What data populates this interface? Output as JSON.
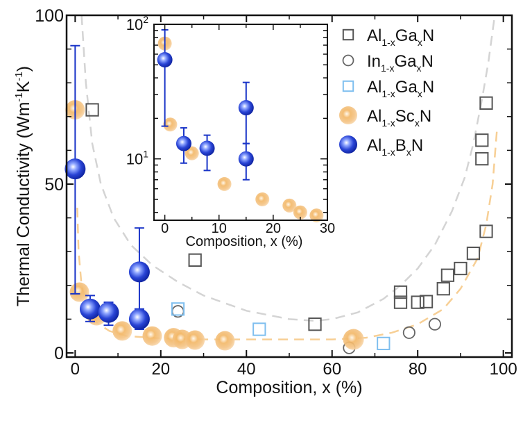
{
  "chart_data": [
    {
      "id": "main",
      "type": "scatter",
      "title": "",
      "xlabel": "Composition, x (%)",
      "ylabel": "Thermal Conductivity (Wm-1K-1)",
      "ylabel_parts": {
        "base": "Thermal Conductivity (Wm",
        "sup1": "-1",
        "mid": "K",
        "sup2": "-1",
        "end": ")"
      },
      "xlim": [
        -2,
        102
      ],
      "ylim": [
        0,
        100
      ],
      "xticks": [
        0,
        20,
        40,
        60,
        80,
        100
      ],
      "xtick_labels": [
        "0",
        "20",
        "40",
        "60",
        "80",
        "100"
      ],
      "yticks": [
        0,
        50,
        100
      ],
      "ytick_labels": [
        "0",
        "50",
        "100"
      ],
      "grid": false,
      "legend_position": "top-right",
      "series": [
        {
          "name": "Al1-xGaxN",
          "label_parts": {
            "a": "Al",
            "sa": "1-x",
            "b": "Ga",
            "sb": "x",
            "c": "N"
          },
          "marker": "square-open",
          "color": "#555555",
          "points": [
            {
              "x": 4,
              "y": 72
            },
            {
              "x": 28,
              "y": 27.5
            },
            {
              "x": 56,
              "y": 8.5
            },
            {
              "x": 76,
              "y": 18
            },
            {
              "x": 76,
              "y": 15
            },
            {
              "x": 80,
              "y": 15
            },
            {
              "x": 82,
              "y": 15.2
            },
            {
              "x": 86,
              "y": 19
            },
            {
              "x": 87,
              "y": 23
            },
            {
              "x": 90,
              "y": 25
            },
            {
              "x": 93,
              "y": 29.5
            },
            {
              "x": 96,
              "y": 36
            },
            {
              "x": 95,
              "y": 57.5
            },
            {
              "x": 95,
              "y": 63
            },
            {
              "x": 96,
              "y": 74
            }
          ]
        },
        {
          "name": "In1-xGaxN",
          "label_parts": {
            "a": "In",
            "sa": "1-x",
            "b": "Ga",
            "sb": "x",
            "c": "N"
          },
          "marker": "circle-open",
          "color": "#666666",
          "points": [
            {
              "x": 24,
              "y": 12.3
            },
            {
              "x": 64,
              "y": 1.5
            },
            {
              "x": 78,
              "y": 6
            },
            {
              "x": 84,
              "y": 8.5
            }
          ]
        },
        {
          "name": "Al1-xGaxN",
          "label_parts": {
            "a": "Al",
            "sa": "1-x",
            "b": "Ga",
            "sb": "x",
            "c": "N"
          },
          "marker": "square-open-light",
          "color": "#7fbfef",
          "points": [
            {
              "x": 24,
              "y": 13
            },
            {
              "x": 43,
              "y": 7
            },
            {
              "x": 72,
              "y": 2.8
            }
          ]
        },
        {
          "name": "Al1-xScxN",
          "label_parts": {
            "a": "Al",
            "sa": "1-x",
            "b": "Sc",
            "sb": "x",
            "c": "N"
          },
          "marker": "sphere",
          "color": "#f2b560",
          "points": [
            {
              "x": 0,
              "y": 72
            },
            {
              "x": 1,
              "y": 18
            },
            {
              "x": 5,
              "y": 11
            },
            {
              "x": 11,
              "y": 6.5
            },
            {
              "x": 18,
              "y": 5
            },
            {
              "x": 23,
              "y": 4.5
            },
            {
              "x": 25,
              "y": 4
            },
            {
              "x": 28,
              "y": 3.8
            },
            {
              "x": 35,
              "y": 3.6
            },
            {
              "x": 65,
              "y": 4
            }
          ]
        },
        {
          "name": "Al1-xBxN",
          "label_parts": {
            "a": "Al",
            "sa": "1-x",
            "b": "B",
            "sb": "x",
            "c": "N"
          },
          "marker": "sphere",
          "color": "#1a35c8",
          "points": [
            {
              "x": 0,
              "y": 54.5,
              "err_low": 17.5,
              "err_high": 91
            },
            {
              "x": 3.5,
              "y": 13,
              "err_low": 9.3,
              "err_high": 17
            },
            {
              "x": 7.8,
              "y": 12,
              "err_low": 8.2,
              "err_high": 15
            },
            {
              "x": 15,
              "y": 24,
              "err_low": 13,
              "err_high": 37
            },
            {
              "x": 15,
              "y": 10,
              "err_low": 7,
              "err_high": 13
            }
          ]
        }
      ],
      "fit_curves": [
        {
          "name": "upper-dashed-gray",
          "color": "#d4d4d4",
          "points": [
            [
              1.5,
              100
            ],
            [
              2.5,
              80
            ],
            [
              4,
              62
            ],
            [
              6,
              50
            ],
            [
              9,
              40
            ],
            [
              13,
              32
            ],
            [
              18,
              26
            ],
            [
              24,
              21
            ],
            [
              30,
              17
            ],
            [
              40,
              12.5
            ],
            [
              50,
              10
            ],
            [
              56,
              9.5
            ],
            [
              60,
              10
            ],
            [
              66,
              12
            ],
            [
              72,
              16
            ],
            [
              76,
              20
            ],
            [
              80,
              25
            ],
            [
              84,
              32
            ],
            [
              88,
              42
            ],
            [
              91,
              52
            ],
            [
              93,
              62
            ],
            [
              95,
              75
            ],
            [
              96.5,
              86
            ],
            [
              98,
              100
            ]
          ]
        },
        {
          "name": "lower-dashed-orange",
          "color": "#f7cf95",
          "points": [
            [
              0.5,
              43
            ],
            [
              0.8,
              30
            ],
            [
              1.5,
              20
            ],
            [
              3,
              13
            ],
            [
              5,
              9
            ],
            [
              8,
              6.5
            ],
            [
              12,
              5
            ],
            [
              20,
              4.3
            ],
            [
              30,
              4
            ],
            [
              45,
              4
            ],
            [
              60,
              4
            ],
            [
              68,
              4.5
            ],
            [
              74,
              6
            ],
            [
              80,
              8.5
            ],
            [
              86,
              13
            ],
            [
              90,
              19
            ],
            [
              94,
              28
            ],
            [
              96,
              38
            ],
            [
              97.5,
              50
            ],
            [
              98.5,
              66
            ]
          ]
        }
      ]
    },
    {
      "id": "inset",
      "type": "scatter",
      "title": "",
      "xlabel": "Composition, x (%)",
      "ylabel": "",
      "yscale": "log",
      "xlim": [
        -2,
        30
      ],
      "ylim": [
        3.5,
        100
      ],
      "xticks": [
        0,
        10,
        20,
        30
      ],
      "xtick_labels": [
        "0",
        "10",
        "20",
        "30"
      ],
      "yticks": [
        10,
        100
      ],
      "ytick_labels": [
        {
          "base": "10",
          "exp": "1"
        },
        {
          "base": "10",
          "exp": "2"
        }
      ],
      "grid": false,
      "series": [
        {
          "name": "Al1-xScxN",
          "marker": "sphere",
          "color": "#f2b560",
          "points": [
            {
              "x": 0,
              "y": 72
            },
            {
              "x": 1,
              "y": 18
            },
            {
              "x": 5,
              "y": 11
            },
            {
              "x": 11,
              "y": 6.5
            },
            {
              "x": 18,
              "y": 5
            },
            {
              "x": 23,
              "y": 4.5
            },
            {
              "x": 25,
              "y": 4
            },
            {
              "x": 28,
              "y": 3.8
            }
          ]
        },
        {
          "name": "Al1-xBxN",
          "marker": "sphere",
          "color": "#1a35c8",
          "points": [
            {
              "x": 0,
              "y": 54.5,
              "err_low": 17.5,
              "err_high": 91
            },
            {
              "x": 3.5,
              "y": 13,
              "err_low": 9.3,
              "err_high": 17
            },
            {
              "x": 7.8,
              "y": 12,
              "err_low": 8.2,
              "err_high": 15
            },
            {
              "x": 15,
              "y": 24,
              "err_low": 13,
              "err_high": 37
            },
            {
              "x": 15,
              "y": 10,
              "err_low": 7,
              "err_high": 13
            }
          ]
        }
      ]
    }
  ]
}
